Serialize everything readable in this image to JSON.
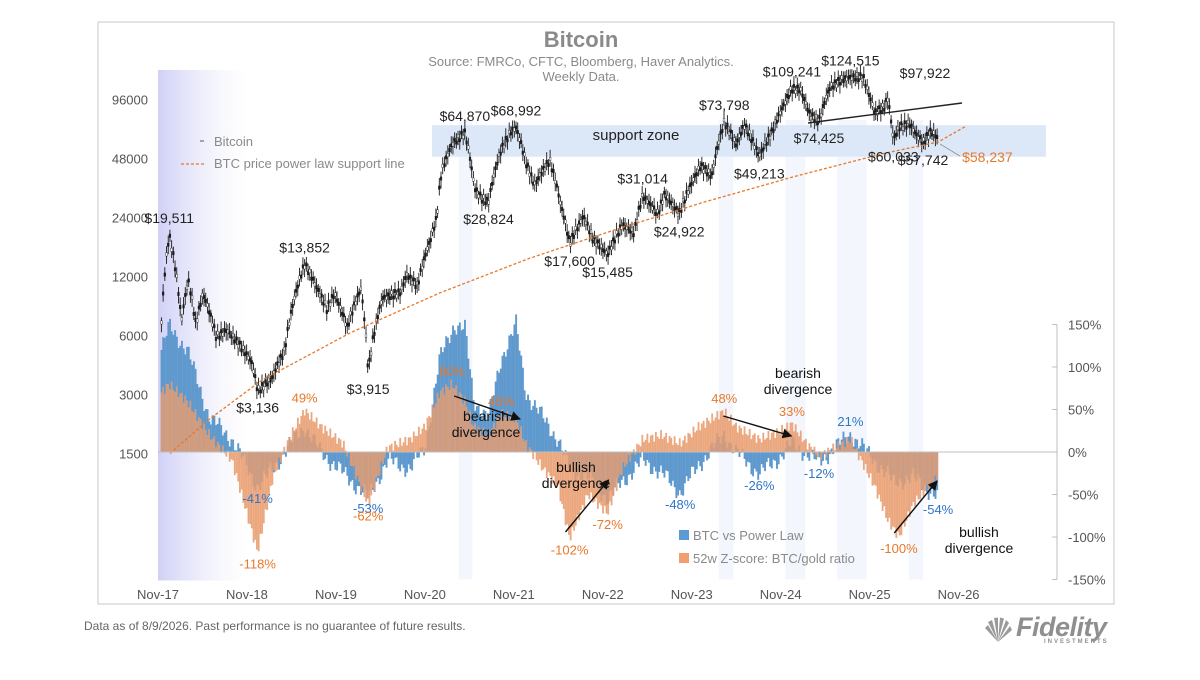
{
  "title": "Bitcoin",
  "subtitle_lines": [
    "Source: FMRCo, CFTC, Bloomberg, Haver Analytics.",
    "Weekly Data."
  ],
  "footer_note": "Data as of 8/9/2026. Past performance is no guarantee of future results.",
  "brand": {
    "name": "Fidelity",
    "sub": "INVESTMENTS"
  },
  "colors": {
    "btc_line": "#1a1a1a",
    "power_law": "#e8782a",
    "btc_vs_power_law": "#5b9bd5",
    "zscore": "#f0a070",
    "support_zone": "#dce8f8",
    "label_orange": "#e8782a",
    "label_blue": "#2e75c8"
  },
  "chart_data": {
    "type": "line",
    "title": "Bitcoin",
    "x_ticks": [
      "Nov-17",
      "Nov-18",
      "Nov-19",
      "Nov-20",
      "Nov-21",
      "Nov-22",
      "Nov-23",
      "Nov-24",
      "Nov-25",
      "Nov-26"
    ],
    "y_left": {
      "scale": "log",
      "ticks": [
        "96000",
        "48000",
        "24000",
        "12000",
        "6000",
        "3000",
        "1500"
      ]
    },
    "y_right": {
      "ticks": [
        "150%",
        "100%",
        "50%",
        "0%",
        "-50%",
        "-100%",
        "-150%"
      ],
      "range": [
        -150,
        150
      ]
    },
    "legend_top": [
      "Bitcoin",
      "BTC price power law support line"
    ],
    "legend_bottom": [
      "BTC vs Power Law",
      "52w Z-score: BTC/gold ratio"
    ],
    "series": [
      {
        "name": "Bitcoin",
        "points": [
          [
            "2017-11-15",
            7000
          ],
          [
            "2017-12-17",
            19511
          ],
          [
            "2018-02-05",
            7000
          ],
          [
            "2018-03-05",
            11500
          ],
          [
            "2018-04-05",
            6800
          ],
          [
            "2018-05-05",
            9800
          ],
          [
            "2018-06-28",
            5900
          ],
          [
            "2018-08-10",
            6400
          ],
          [
            "2018-11-20",
            4400
          ],
          [
            "2018-12-15",
            3136
          ],
          [
            "2019-02-10",
            3600
          ],
          [
            "2019-04-05",
            5000
          ],
          [
            "2019-06-26",
            13852
          ],
          [
            "2019-08-15",
            10500
          ],
          [
            "2019-09-25",
            8200
          ],
          [
            "2019-10-26",
            9800
          ],
          [
            "2019-12-18",
            6600
          ],
          [
            "2020-02-12",
            10400
          ],
          [
            "2020-03-13",
            3915
          ],
          [
            "2020-05-10",
            9300
          ],
          [
            "2020-07-26",
            10000
          ],
          [
            "2020-08-17",
            12300
          ],
          [
            "2020-10-01",
            10700
          ],
          [
            "2020-11-25",
            18700
          ],
          [
            "2020-12-20",
            24000
          ],
          [
            "2021-01-08",
            41000
          ],
          [
            "2021-02-21",
            57000
          ],
          [
            "2021-04-14",
            64870
          ],
          [
            "2021-05-23",
            34000
          ],
          [
            "2021-06-22",
            30000
          ],
          [
            "2021-07-20",
            28824
          ],
          [
            "2021-09-07",
            52000
          ],
          [
            "2021-10-20",
            66000
          ],
          [
            "2021-11-10",
            68992
          ],
          [
            "2021-12-20",
            46000
          ],
          [
            "2022-01-24",
            35000
          ],
          [
            "2022-03-28",
            47000
          ],
          [
            "2022-05-12",
            28000
          ],
          [
            "2022-06-18",
            17600
          ],
          [
            "2022-08-14",
            24400
          ],
          [
            "2022-09-20",
            18800
          ],
          [
            "2022-11-21",
            15485
          ],
          [
            "2023-01-20",
            22000
          ],
          [
            "2023-03-10",
            20000
          ],
          [
            "2023-04-14",
            31014
          ],
          [
            "2023-06-15",
            25000
          ],
          [
            "2023-07-13",
            31400
          ],
          [
            "2023-09-11",
            24922
          ],
          [
            "2023-10-25",
            34500
          ],
          [
            "2023-12-08",
            44000
          ],
          [
            "2024-01-23",
            39000
          ],
          [
            "2024-03-14",
            73798
          ],
          [
            "2024-05-01",
            56500
          ],
          [
            "2024-06-05",
            71000
          ],
          [
            "2024-08-05",
            49213
          ],
          [
            "2024-09-27",
            66000
          ],
          [
            "2024-11-13",
            90000
          ],
          [
            "2024-12-17",
            109241
          ],
          [
            "2025-01-20",
            108000
          ],
          [
            "2025-02-28",
            80000
          ],
          [
            "2025-04-07",
            74425
          ],
          [
            "2025-05-22",
            111000
          ],
          [
            "2025-07-14",
            122000
          ],
          [
            "2025-08-14",
            124515
          ],
          [
            "2025-10-06",
            125000
          ],
          [
            "2025-10-20",
            110000
          ],
          [
            "2025-11-21",
            82000
          ],
          [
            "2025-12-31",
            88000
          ],
          [
            "2026-01-14",
            97922
          ],
          [
            "2026-02-06",
            60033
          ],
          [
            "2026-03-05",
            70000
          ],
          [
            "2026-04-14",
            72000
          ],
          [
            "2026-05-10",
            64000
          ],
          [
            "2026-06-08",
            57742
          ],
          [
            "2026-07-10",
            66000
          ],
          [
            "2026-08-09",
            61000
          ]
        ]
      },
      {
        "name": "BTC price power law support line",
        "points": [
          [
            "2017-12-20",
            1500
          ],
          [
            "2018-06-01",
            2250
          ],
          [
            "2019-01-01",
            3550
          ],
          [
            "2020-01-01",
            6200
          ],
          [
            "2021-01-01",
            9900
          ],
          [
            "2022-01-01",
            14800
          ],
          [
            "2023-01-01",
            21000
          ],
          [
            "2024-01-01",
            29000
          ],
          [
            "2025-01-01",
            39000
          ],
          [
            "2026-01-01",
            51000
          ],
          [
            "2026-08-09",
            58237
          ],
          [
            "2026-11-30",
            70000
          ]
        ]
      },
      {
        "name": "BTC vs Power Law",
        "unit": "%",
        "points": [
          [
            "2017-11-15",
            120
          ],
          [
            "2017-12-17",
            148
          ],
          [
            "2018-03-01",
            120
          ],
          [
            "2018-06-01",
            40
          ],
          [
            "2018-09-01",
            15
          ],
          [
            "2018-12-15",
            -41
          ],
          [
            "2019-02-15",
            -20
          ],
          [
            "2019-05-01",
            10
          ],
          [
            "2019-06-26",
            30
          ],
          [
            "2019-09-01",
            0
          ],
          [
            "2019-12-01",
            -25
          ],
          [
            "2020-03-13",
            -53
          ],
          [
            "2020-06-01",
            -10
          ],
          [
            "2020-09-01",
            -20
          ],
          [
            "2020-11-01",
            5
          ],
          [
            "2021-01-01",
            110
          ],
          [
            "2021-03-01",
            150
          ],
          [
            "2021-04-14",
            145
          ],
          [
            "2021-05-20",
            60
          ],
          [
            "2021-07-20",
            40
          ],
          [
            "2021-09-10",
            110
          ],
          [
            "2021-11-10",
            150
          ],
          [
            "2021-12-20",
            70
          ],
          [
            "2022-03-01",
            40
          ],
          [
            "2022-05-01",
            15
          ],
          [
            "2022-06-18",
            -20
          ],
          [
            "2022-09-01",
            -30
          ],
          [
            "2022-11-21",
            -55
          ],
          [
            "2023-01-20",
            -35
          ],
          [
            "2023-04-14",
            -10
          ],
          [
            "2023-07-01",
            -25
          ],
          [
            "2023-09-15",
            -48
          ],
          [
            "2023-12-01",
            -15
          ],
          [
            "2024-03-14",
            21
          ],
          [
            "2024-05-01",
            0
          ],
          [
            "2024-08-05",
            -26
          ],
          [
            "2024-11-01",
            -5
          ],
          [
            "2024-12-17",
            10
          ],
          [
            "2025-04-07",
            -12
          ],
          [
            "2025-08-14",
            21
          ],
          [
            "2025-11-21",
            -10
          ],
          [
            "2026-02-06",
            -35
          ],
          [
            "2026-05-01",
            -30
          ],
          [
            "2026-08-09",
            -54
          ]
        ]
      },
      {
        "name": "52w Z-score: BTC/gold ratio",
        "unit": "%",
        "points": [
          [
            "2017-11-15",
            70
          ],
          [
            "2017-12-17",
            80
          ],
          [
            "2018-03-01",
            60
          ],
          [
            "2018-06-01",
            20
          ],
          [
            "2018-09-01",
            -10
          ],
          [
            "2018-12-15",
            -118
          ],
          [
            "2019-02-15",
            -30
          ],
          [
            "2019-05-01",
            20
          ],
          [
            "2019-06-26",
            49
          ],
          [
            "2019-09-01",
            30
          ],
          [
            "2019-12-01",
            10
          ],
          [
            "2020-03-13",
            -62
          ],
          [
            "2020-06-01",
            5
          ],
          [
            "2020-09-01",
            15
          ],
          [
            "2020-11-01",
            30
          ],
          [
            "2021-01-01",
            70
          ],
          [
            "2021-02-21",
            80
          ],
          [
            "2021-04-14",
            60
          ],
          [
            "2021-05-20",
            30
          ],
          [
            "2021-07-20",
            20
          ],
          [
            "2021-09-10",
            45
          ],
          [
            "2021-11-10",
            40
          ],
          [
            "2021-12-20",
            10
          ],
          [
            "2022-03-01",
            -20
          ],
          [
            "2022-05-01",
            -40
          ],
          [
            "2022-06-18",
            -102
          ],
          [
            "2022-09-01",
            -50
          ],
          [
            "2022-11-21",
            -72
          ],
          [
            "2023-01-20",
            -20
          ],
          [
            "2023-04-14",
            15
          ],
          [
            "2023-07-01",
            20
          ],
          [
            "2023-09-15",
            10
          ],
          [
            "2023-12-01",
            30
          ],
          [
            "2024-03-14",
            48
          ],
          [
            "2024-05-01",
            30
          ],
          [
            "2024-08-05",
            15
          ],
          [
            "2024-11-01",
            25
          ],
          [
            "2024-12-17",
            33
          ],
          [
            "2025-02-15",
            10
          ],
          [
            "2025-04-07",
            -5
          ],
          [
            "2025-08-14",
            15
          ],
          [
            "2025-11-21",
            -40
          ],
          [
            "2026-01-14",
            -80
          ],
          [
            "2026-03-01",
            -100
          ],
          [
            "2026-05-01",
            -60
          ],
          [
            "2026-08-09",
            -30
          ]
        ]
      }
    ],
    "price_labels": [
      {
        "text": "$19,511",
        "x": "2017-12-17",
        "y": 19511,
        "pos": "above"
      },
      {
        "text": "$13,852",
        "x": "2019-06-26",
        "y": 13852,
        "pos": "above"
      },
      {
        "text": "$3,136",
        "x": "2018-12-15",
        "y": 3136,
        "pos": "below"
      },
      {
        "text": "$3,915",
        "x": "2020-03-13",
        "y": 3915,
        "pos": "below"
      },
      {
        "text": "$64,870",
        "x": "2021-04-14",
        "y": 64870,
        "pos": "above"
      },
      {
        "text": "$68,992",
        "x": "2021-11-10",
        "y": 68992,
        "pos": "above"
      },
      {
        "text": "$28,824",
        "x": "2021-07-20",
        "y": 28824,
        "pos": "below"
      },
      {
        "text": "$17,600",
        "x": "2022-06-18",
        "y": 17600,
        "pos": "below"
      },
      {
        "text": "$15,485",
        "x": "2022-11-21",
        "y": 15485,
        "pos": "below"
      },
      {
        "text": "$31,014",
        "x": "2023-04-14",
        "y": 31014,
        "pos": "above"
      },
      {
        "text": "$24,922",
        "x": "2023-09-11",
        "y": 24922,
        "pos": "below"
      },
      {
        "text": "$73,798",
        "x": "2024-03-14",
        "y": 73798,
        "pos": "above"
      },
      {
        "text": "$49,213",
        "x": "2024-08-05",
        "y": 49213,
        "pos": "below"
      },
      {
        "text": "$109,241",
        "x": "2024-12-17",
        "y": 109241,
        "pos": "above"
      },
      {
        "text": "$74,425",
        "x": "2025-04-07",
        "y": 74425,
        "pos": "below"
      },
      {
        "text": "$124,515",
        "x": "2025-08-14",
        "y": 124515,
        "pos": "above"
      },
      {
        "text": "$97,922",
        "x": "2026-01-14",
        "y": 97922,
        "pos": "right"
      },
      {
        "text": "$60,033",
        "x": "2026-02-06",
        "y": 60033,
        "pos": "below"
      },
      {
        "text": "$57,742",
        "x": "2026-06-08",
        "y": 57742,
        "pos": "below"
      },
      {
        "text": "$58,237",
        "x": "2026-08-09",
        "y": 58237,
        "pos": "power-law"
      }
    ],
    "pct_labels": [
      {
        "text": "-41%",
        "x": "2018-12-15",
        "y": -41,
        "series": "BTC vs Power Law"
      },
      {
        "text": "-118%",
        "x": "2018-12-15",
        "y": -118,
        "series": "52w Z-score: BTC/gold ratio"
      },
      {
        "text": "49%",
        "x": "2019-06-26",
        "y": 49,
        "series": "52w Z-score: BTC/gold ratio"
      },
      {
        "text": "-53%",
        "x": "2020-03-13",
        "y": -53,
        "series": "BTC vs Power Law"
      },
      {
        "text": "-62%",
        "x": "2020-03-13",
        "y": -62,
        "series": "52w Z-score: BTC/gold ratio"
      },
      {
        "text": "80%",
        "x": "2021-02-21",
        "y": 80,
        "series": "52w Z-score: BTC/gold ratio"
      },
      {
        "text": "45%",
        "x": "2021-09-10",
        "y": 45,
        "series": "52w Z-score: BTC/gold ratio"
      },
      {
        "text": "-102%",
        "x": "2022-06-18",
        "y": -102,
        "series": "52w Z-score: BTC/gold ratio"
      },
      {
        "text": "-72%",
        "x": "2022-11-21",
        "y": -72,
        "series": "52w Z-score: BTC/gold ratio"
      },
      {
        "text": "-48%",
        "x": "2023-09-15",
        "y": -48,
        "series": "BTC vs Power Law"
      },
      {
        "text": "48%",
        "x": "2024-03-14",
        "y": 48,
        "series": "52w Z-score: BTC/gold ratio"
      },
      {
        "text": "-26%",
        "x": "2024-08-05",
        "y": -26,
        "series": "BTC vs Power Law"
      },
      {
        "text": "33%",
        "x": "2024-12-17",
        "y": 33,
        "series": "52w Z-score: BTC/gold ratio"
      },
      {
        "text": "-12%",
        "x": "2025-04-07",
        "y": -12,
        "series": "BTC vs Power Law"
      },
      {
        "text": "21%",
        "x": "2025-08-14",
        "y": 21,
        "series": "BTC vs Power Law"
      },
      {
        "text": "-100%",
        "x": "2026-03-01",
        "y": -100,
        "series": "52w Z-score: BTC/gold ratio"
      },
      {
        "text": "-54%",
        "x": "2026-08-09",
        "y": -54,
        "series": "BTC vs Power Law"
      }
    ],
    "support_zone": {
      "label": "support zone",
      "range": [
        49000,
        71000
      ]
    },
    "annotations": [
      {
        "text": "bearish divergence",
        "kind": "bearish"
      },
      {
        "text": "bullish divergence",
        "kind": "bullish"
      },
      {
        "text": "bearish divergence",
        "kind": "bearish"
      },
      {
        "text": "bullish divergence",
        "kind": "bullish"
      }
    ],
    "grid": false,
    "legend_placement": "top-left (price) and bottom-right (oscillators)"
  }
}
